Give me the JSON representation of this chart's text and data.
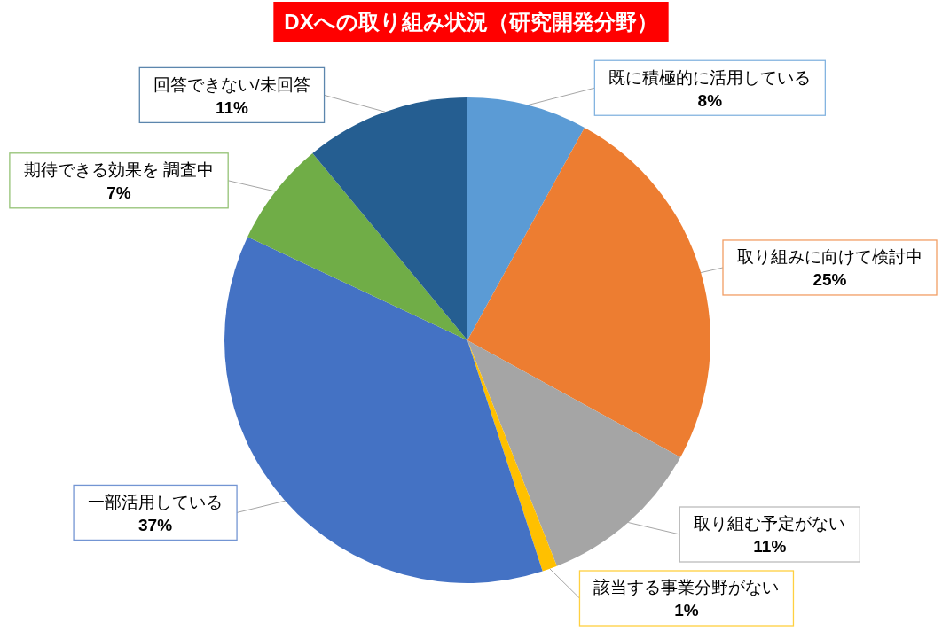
{
  "chart_data": {
    "type": "pie",
    "title": "DXへの取り組み状況（研究開発分野）",
    "categories": [
      "既に積極的に活用している",
      "取り組みに向けて検討中",
      "取り組む予定がない",
      "該当する事業分野がない",
      "一部活用している",
      "期待できる効果を 調査中",
      "回答できない/未回答"
    ],
    "values": [
      8,
      25,
      11,
      1,
      37,
      7,
      11
    ],
    "value_labels": [
      "8%",
      "25%",
      "11%",
      "1%",
      "37%",
      "7%",
      "11%"
    ],
    "colors": [
      "#5b9bd5",
      "#ed7d31",
      "#a5a5a5",
      "#ffc000",
      "#4472c4",
      "#70ad47",
      "#255e91"
    ]
  }
}
